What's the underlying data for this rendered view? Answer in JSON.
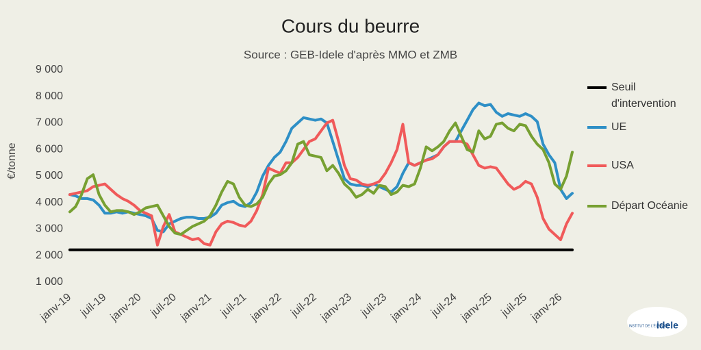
{
  "chart_data": {
    "type": "line",
    "title": "Cours du beurre",
    "subtitle": "Source : GEB-Idele d'après MMO et ZMB",
    "y_label": "€/tonne",
    "logo": {
      "line1": "INSTITUT DE L'ÉLEVAGE",
      "brand": "idele"
    },
    "categories": [
      "janv-19",
      null,
      null,
      null,
      null,
      null,
      "juil-19",
      null,
      null,
      null,
      null,
      null,
      "janv-20",
      null,
      null,
      null,
      null,
      null,
      "juil-20",
      null,
      null,
      null,
      null,
      null,
      "janv-21",
      null,
      null,
      null,
      null,
      null,
      "juil-21",
      null,
      null,
      null,
      null,
      null,
      "janv-22",
      null,
      null,
      null,
      null,
      null,
      "juil-22",
      null,
      null,
      null,
      null,
      null,
      "janv-23",
      null,
      null,
      null,
      null,
      null,
      "juil-23",
      null,
      null,
      null,
      null,
      null,
      "janv-24",
      null,
      null,
      null,
      null,
      null,
      "juil-24",
      null,
      null,
      null,
      null,
      null,
      "janv-25",
      null,
      null,
      null,
      null,
      null,
      "juil-25",
      null,
      null,
      null,
      null,
      null,
      "janv-26",
      null,
      null
    ],
    "ylim": [
      1000,
      9000
    ],
    "yticks": [
      {
        "value": 1000,
        "label": "1 000"
      },
      {
        "value": 2000,
        "label": "2 000"
      },
      {
        "value": 3000,
        "label": "3 000"
      },
      {
        "value": 4000,
        "label": "4 000"
      },
      {
        "value": 5000,
        "label": "5 000"
      },
      {
        "value": 6000,
        "label": "6 000"
      },
      {
        "value": 7000,
        "label": "7 000"
      },
      {
        "value": 8000,
        "label": "8 000"
      },
      {
        "value": 9000,
        "label": "9 000"
      }
    ],
    "grid": false,
    "legend": "right",
    "series": [
      {
        "name": "Seuil d'intervention",
        "color": "#000000",
        "values": [
          2220,
          2220,
          2220,
          2220,
          2220,
          2220,
          2220,
          2220,
          2220,
          2220,
          2220,
          2220,
          2220,
          2220,
          2220,
          2220,
          2220,
          2220,
          2220,
          2220,
          2220,
          2220,
          2220,
          2220,
          2220,
          2220,
          2220,
          2220,
          2220,
          2220,
          2220,
          2220,
          2220,
          2220,
          2220,
          2220,
          2220,
          2220,
          2220,
          2220,
          2220,
          2220,
          2220,
          2220,
          2220,
          2220,
          2220,
          2220,
          2220,
          2220,
          2220,
          2220,
          2220,
          2220,
          2220,
          2220,
          2220,
          2220,
          2220,
          2220,
          2220,
          2220,
          2220,
          2220,
          2220,
          2220,
          2220,
          2220,
          2220,
          2220,
          2220,
          2220,
          2220,
          2220,
          2220,
          2220,
          2220,
          2220,
          2220,
          2220,
          2220,
          2220,
          2220,
          2220,
          2220,
          2220,
          2220
        ]
      },
      {
        "name": "UE",
        "color": "#2e8fc6",
        "values": [
          4300,
          4250,
          4150,
          4150,
          4100,
          3900,
          3600,
          3600,
          3650,
          3600,
          3650,
          3600,
          3550,
          3500,
          3400,
          2950,
          2900,
          3200,
          3300,
          3400,
          3450,
          3450,
          3400,
          3400,
          3450,
          3600,
          3900,
          4000,
          4050,
          3900,
          3850,
          4000,
          4400,
          5000,
          5400,
          5700,
          5900,
          6300,
          6800,
          7000,
          7200,
          7150,
          7100,
          7150,
          7000,
          6300,
          5600,
          4900,
          4700,
          4650,
          4650,
          4600,
          4700,
          4600,
          4500,
          4400,
          4600,
          5100,
          5500,
          5400,
          5500,
          5600,
          5700,
          5800,
          6100,
          6300,
          6300,
          6700,
          7100,
          7500,
          7750,
          7650,
          7700,
          7400,
          7250,
          7350,
          7300,
          7250,
          7350,
          7250,
          7050,
          6200,
          5800,
          5500,
          4500,
          4150,
          4350
        ]
      },
      {
        "name": "USA",
        "color": "#f05a5a",
        "values": [
          4300,
          4350,
          4400,
          4450,
          4600,
          4650,
          4700,
          4500,
          4300,
          4150,
          4050,
          3900,
          3700,
          3600,
          3500,
          2400,
          3100,
          3550,
          2900,
          2800,
          2700,
          2600,
          2650,
          2450,
          2400,
          2900,
          3200,
          3300,
          3250,
          3150,
          3100,
          3300,
          3700,
          4300,
          5300,
          5200,
          5100,
          5500,
          5500,
          5700,
          6000,
          6300,
          6400,
          6700,
          7000,
          7100,
          6300,
          5400,
          4900,
          4850,
          4700,
          4650,
          4700,
          4800,
          5100,
          5500,
          6000,
          6950,
          5500,
          5400,
          5500,
          5600,
          5650,
          5800,
          6100,
          6300,
          6300,
          6300,
          6200,
          5800,
          5400,
          5300,
          5350,
          5300,
          5000,
          4700,
          4500,
          4600,
          4800,
          4700,
          4200,
          3400,
          3000,
          2800,
          2600,
          3200,
          3600
        ]
      },
      {
        "name": "Départ Océanie",
        "color": "#77a032",
        "values": [
          3650,
          3850,
          4300,
          4900,
          5050,
          4300,
          3900,
          3650,
          3700,
          3700,
          3650,
          3550,
          3650,
          3800,
          3850,
          3900,
          3500,
          3100,
          2850,
          2800,
          2950,
          3100,
          3200,
          3300,
          3500,
          3900,
          4400,
          4800,
          4700,
          4200,
          3900,
          3850,
          3950,
          4200,
          4700,
          5000,
          5050,
          5200,
          5500,
          6200,
          6300,
          5800,
          5750,
          5700,
          5200,
          5400,
          5100,
          4700,
          4500,
          4200,
          4300,
          4500,
          4350,
          4650,
          4600,
          4300,
          4400,
          4650,
          4600,
          4700,
          5300,
          6100,
          5950,
          6100,
          6300,
          6700,
          7000,
          6500,
          6000,
          5900,
          6700,
          6400,
          6500,
          6950,
          7000,
          6800,
          6700,
          6950,
          6900,
          6500,
          6200,
          6000,
          5500,
          4700,
          4500,
          5000,
          5900
        ]
      }
    ]
  }
}
